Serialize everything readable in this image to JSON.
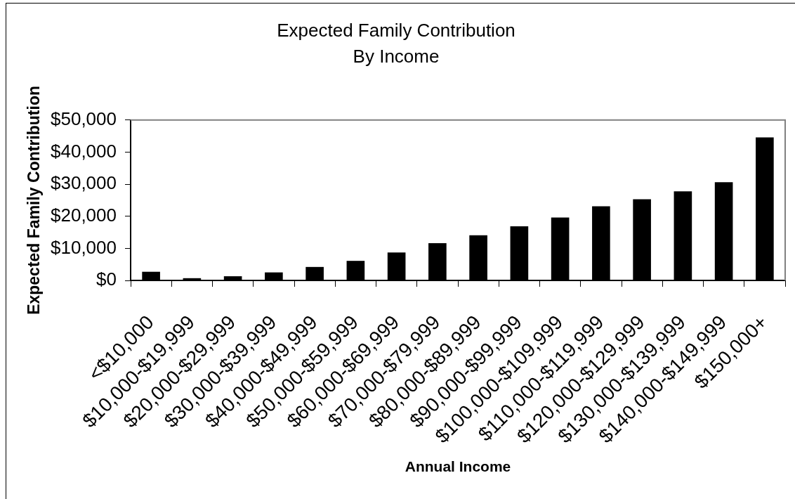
{
  "chart_data": {
    "type": "bar",
    "title": "Expected Family Contribution",
    "subtitle": "By Income",
    "xlabel": "Annual Income",
    "ylabel": "Expected Family Contribution",
    "categories": [
      "<$10,000",
      "$10,000-$19,999",
      "$20,000-$29,999",
      "$30,000-$39,999",
      "$40,000-$49,999",
      "$50,000-$59,999",
      "$60,000-$69,999",
      "$70,000-$79,999",
      "$80,000-$89,999",
      "$90,000-$99,999",
      "$100,000-$109,999",
      "$110,000-$119,999",
      "$120,000-$129,999",
      "$130,000-$139,999",
      "$140,000-$149,999",
      "$150,000+"
    ],
    "values": [
      2700,
      700,
      1300,
      2500,
      4200,
      6100,
      8700,
      11600,
      14100,
      16900,
      19600,
      23100,
      25300,
      27800,
      30600,
      44600
    ],
    "color": "#000000",
    "ylim": [
      0,
      50000
    ],
    "yticks": [
      {
        "value": 0,
        "label": "$0"
      },
      {
        "value": 10000,
        "label": "$10,000"
      },
      {
        "value": 20000,
        "label": "$20,000"
      },
      {
        "value": 30000,
        "label": "$30,000"
      },
      {
        "value": 40000,
        "label": "$40,000"
      },
      {
        "value": 50000,
        "label": "$50,000"
      }
    ]
  }
}
